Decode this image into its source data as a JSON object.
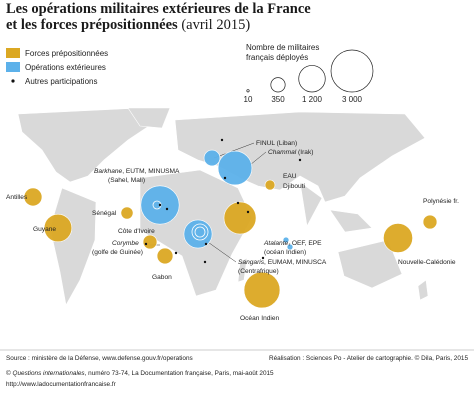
{
  "title": {
    "line1": "Les opérations militaires extérieures de la France",
    "line2": "et les forces prépositionnées",
    "date": "(avril 2015)"
  },
  "legend": {
    "items": [
      {
        "label": "Forces prépositionnées",
        "color": "#dba823"
      },
      {
        "label": "Opérations extérieures",
        "color": "#5cb1ea"
      },
      {
        "label": "Autres participations",
        "color": "#111111"
      }
    ],
    "size_title": [
      "Nombre de militaires",
      "français déployés"
    ],
    "sizes": [
      10,
      350,
      {
        "value": 1200,
        "label": "1 200"
      },
      {
        "value": 3000,
        "label": "3 000"
      }
    ]
  },
  "markers": [
    {
      "kind": 0,
      "value": 550
    },
    {
      "kind": 0,
      "value": 1300
    },
    {
      "kind": 0,
      "value": 250
    },
    {
      "kind": 1,
      "value": 2500
    },
    {
      "kind": 0,
      "value": 330
    },
    {
      "kind": 0,
      "value": 430
    },
    {
      "kind": 1,
      "value": 1350
    },
    {
      "kind": 1,
      "value": 1950
    },
    {
      "kind": 1,
      "value": 430
    },
    {
      "kind": 0,
      "value": 170
    },
    {
      "kind": 0,
      "value": 1750
    },
    {
      "kind": 1,
      "value": 60
    },
    {
      "kind": 1,
      "value": 60
    },
    {
      "kind": 0,
      "value": 2200
    },
    {
      "kind": 0,
      "value": 330
    },
    {
      "kind": 0,
      "value": 1450
    }
  ],
  "labels": {
    "finul": "FINUL (Liban)",
    "chammal": "Chammal",
    "chammal_place": " (Irak)",
    "barkhane": "Barkhane",
    "barkhane_rest": ", EUTM, MINUSMA",
    "sahel": "(Sahel, Mali)",
    "eau": "EAU",
    "djibouti": "Djibouti",
    "antilles": "Antilles",
    "senegal": "Sénégal",
    "polynesie": "Polynésie fr.",
    "cote_ivoire": "Côte d'Ivoire",
    "corymbe": "Corymbe",
    "golfe": "(golfe de Guinée)",
    "gabon": "Gabon",
    "atalante": "Atalante",
    "atalante_rest": ", OEF, EPE",
    "ocean_indien_op": "(océan Indien)",
    "sangaris": "Sangaris",
    "sangaris_rest": ", EUMAM, MINUSCA",
    "centrafrique": "(Centrafrique)",
    "guyane": "Guyane",
    "caledonie": "Nouvelle-Calédonie",
    "ocean_indien": "Océan Indien"
  },
  "footer": {
    "source": "Source : ministère de la Défense, www.defense.gouv.fr/operations",
    "credit": "Réalisation : Sciences Po - Atelier de cartographie. © Dila, Paris, 2015",
    "copyright": "©",
    "publication": "Questions internationales",
    "publication_rest": ", numéro 73-74, La Documentation française, Paris, mai-août 2015",
    "url": "http://www.ladocumentationfrancaise.fr"
  }
}
